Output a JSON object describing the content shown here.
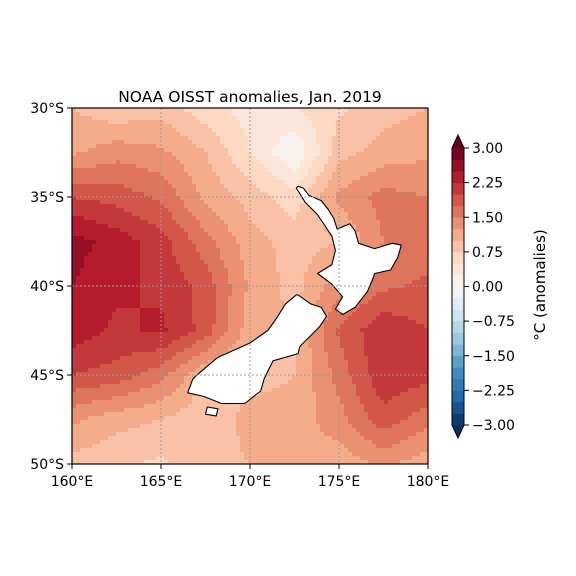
{
  "title": "NOAA OISST anomalies, Jan. 2019",
  "map": {
    "lon_range": [
      160,
      180
    ],
    "lat_range": [
      -50,
      -30
    ],
    "lon_ticks": [
      {
        "value": 160,
        "label": "160°E"
      },
      {
        "value": 165,
        "label": "165°E"
      },
      {
        "value": 170,
        "label": "170°E"
      },
      {
        "value": 175,
        "label": "175°E"
      },
      {
        "value": 180,
        "label": "180°E"
      }
    ],
    "lat_ticks": [
      {
        "value": -30,
        "label": "30°S"
      },
      {
        "value": -35,
        "label": "35°S"
      },
      {
        "value": -40,
        "label": "40°S"
      },
      {
        "value": -45,
        "label": "45°S"
      },
      {
        "value": -50,
        "label": "50°S"
      }
    ],
    "gridlines": true,
    "land_color": "#ffffff",
    "coast_color": "#000000"
  },
  "colorbar": {
    "label": "°C (anomalies)",
    "range": [
      -3,
      3
    ],
    "step": 0.25,
    "extend": "both",
    "colormap": "RdBu_r",
    "ticks": [
      {
        "value": 3.0,
        "label": "3.00"
      },
      {
        "value": 2.25,
        "label": "2.25"
      },
      {
        "value": 1.5,
        "label": "1.50"
      },
      {
        "value": 0.75,
        "label": "0.75"
      },
      {
        "value": 0.0,
        "label": "0.00"
      },
      {
        "value": -0.75,
        "label": "−0.75"
      },
      {
        "value": -1.5,
        "label": "−1.50"
      },
      {
        "value": -2.25,
        "label": "−2.25"
      },
      {
        "value": -3.0,
        "label": "−3.00"
      }
    ]
  },
  "chart_data": {
    "type": "heatmap",
    "title": "NOAA OISST anomalies, Jan. 2019",
    "xlabel": "",
    "ylabel": "",
    "xlim": [
      160,
      180
    ],
    "ylim": [
      -50,
      -30
    ],
    "value_range": [
      -3,
      3
    ],
    "units": "°C (anomalies)",
    "grid_lons": [
      160,
      162.5,
      165,
      167.5,
      170,
      172.5,
      175,
      177.5,
      180
    ],
    "grid_lats": [
      -30,
      -32.5,
      -35,
      -37.5,
      -40,
      -42.5,
      -45,
      -47.5,
      -50
    ],
    "values": [
      [
        1.0,
        0.8,
        0.9,
        0.6,
        0.4,
        0.5,
        0.7,
        0.9,
        1.0
      ],
      [
        1.2,
        1.4,
        1.3,
        1.0,
        0.5,
        0.0,
        0.9,
        1.1,
        1.2
      ],
      [
        2.0,
        1.9,
        1.7,
        1.2,
        0.9,
        0.6,
        1.3,
        1.6,
        1.5
      ],
      [
        2.6,
        2.4,
        2.1,
        1.6,
        1.1,
        0.9,
        1.0,
        1.5,
        1.6
      ],
      [
        2.5,
        2.3,
        2.2,
        1.9,
        1.2,
        0.9,
        1.4,
        1.7,
        1.8
      ],
      [
        2.4,
        2.2,
        2.3,
        1.9,
        1.1,
        1.0,
        1.8,
        2.2,
        2.0
      ],
      [
        2.0,
        1.9,
        1.6,
        1.0,
        0.9,
        1.0,
        1.6,
        2.2,
        2.1
      ],
      [
        1.3,
        1.1,
        1.0,
        0.8,
        1.1,
        1.1,
        1.4,
        1.9,
        1.6
      ],
      [
        0.9,
        0.8,
        0.7,
        0.9,
        1.0,
        1.2,
        1.1,
        1.3,
        1.1
      ]
    ]
  }
}
